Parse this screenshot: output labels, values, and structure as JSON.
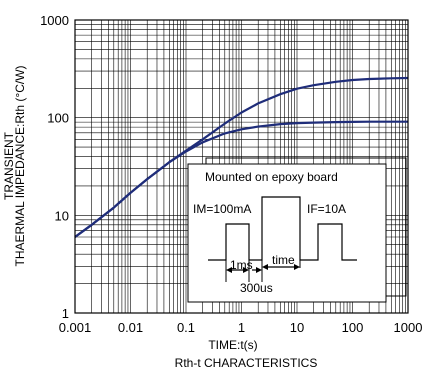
{
  "chart_data": {
    "type": "line",
    "title": "Rth-t CHARACTERISTICS",
    "xlabel": "TIME:t(s)",
    "ylabel_line1": "TRANSIENT",
    "ylabel_line2": "THAERMAL IMPEDANCE:Rth (°C/W)",
    "x_scale": "log",
    "y_scale": "log",
    "xlim": [
      0.001,
      1000
    ],
    "ylim": [
      1,
      1000
    ],
    "grid": true,
    "x_tick_labels": [
      "0.001",
      "0.01",
      "0.1",
      "1",
      "10",
      "100",
      "1000"
    ],
    "y_tick_labels": [
      "1",
      "10",
      "100",
      "1000"
    ],
    "series": [
      {
        "x": [
          0.001,
          0.002,
          0.005,
          0.01,
          0.02,
          0.05,
          0.1,
          0.2,
          0.5,
          1,
          2,
          5,
          10,
          20,
          50,
          100,
          200,
          500,
          1000
        ],
        "y": [
          6,
          8,
          12,
          17,
          23.5,
          35,
          46,
          60,
          87,
          113,
          140,
          174,
          198,
          215,
          233,
          243,
          249,
          253,
          255
        ],
        "color": "#1f2d7a"
      },
      {
        "x": [
          0.001,
          0.002,
          0.005,
          0.01,
          0.02,
          0.05,
          0.1,
          0.2,
          0.5,
          1,
          2,
          5,
          10,
          20,
          50,
          100,
          200,
          500,
          1000
        ],
        "y": [
          6,
          8,
          12,
          17,
          23.5,
          35,
          45,
          56,
          69,
          76,
          81,
          86,
          88,
          89,
          90,
          90.5,
          91,
          91,
          91
        ],
        "color": "#1f2d7a"
      }
    ],
    "inset": {
      "title": "Mounted on epoxy board",
      "im_label": "IM=100mA",
      "if_label": "IF=10A",
      "t1_label": "1ms",
      "t2_label": "300us",
      "time_label": "time"
    }
  }
}
